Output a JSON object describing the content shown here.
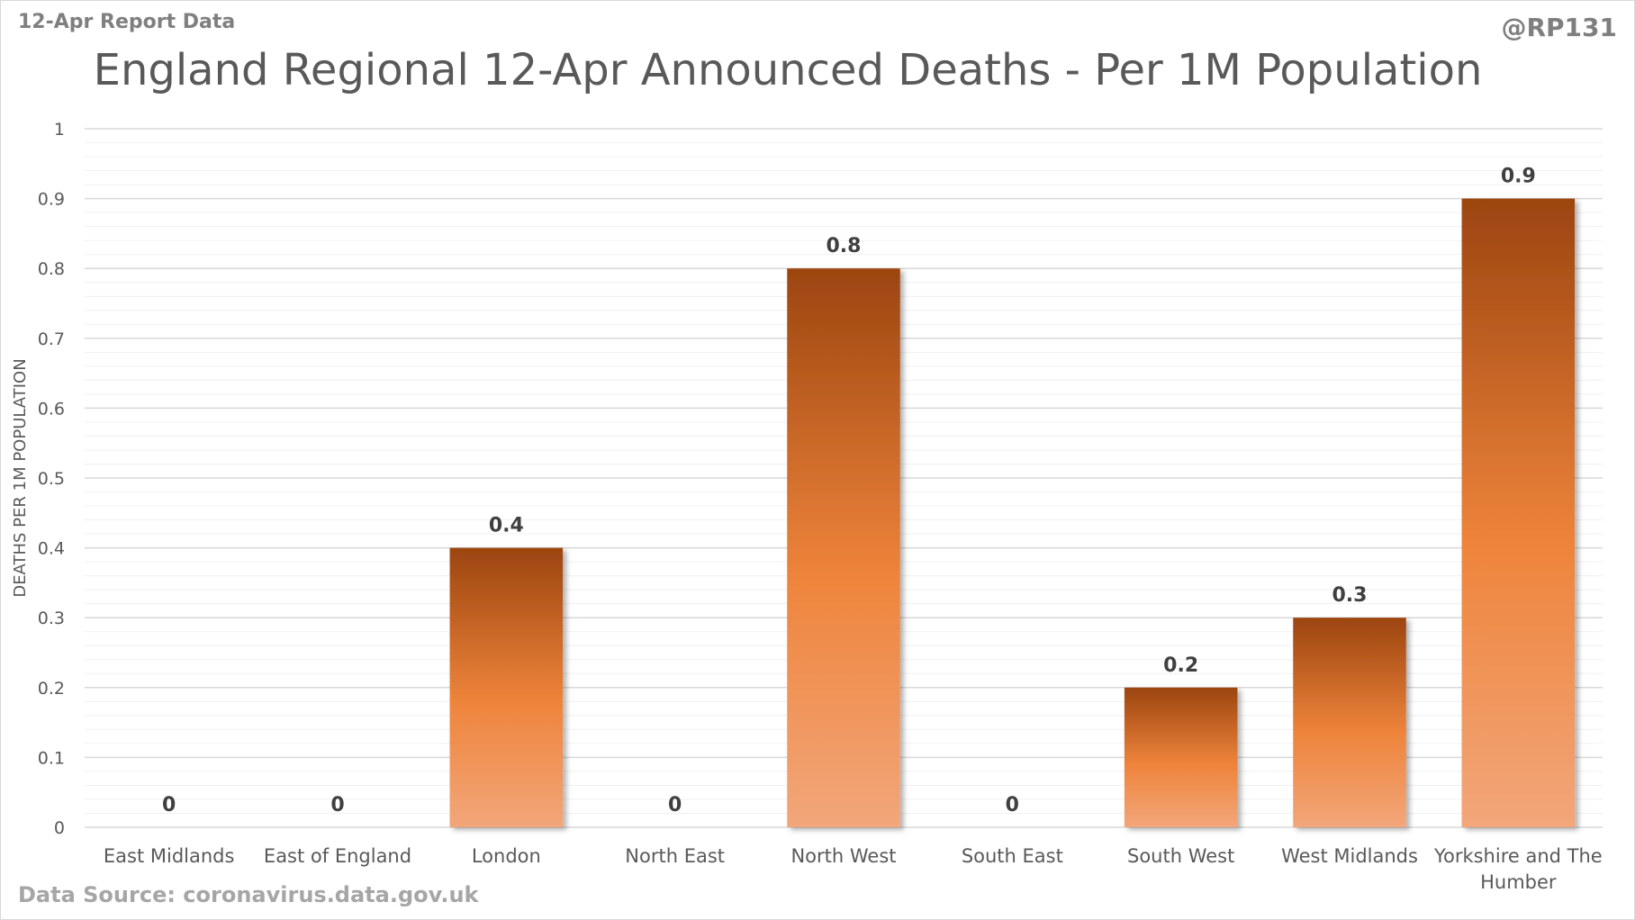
{
  "header": {
    "report_label": "12-Apr Report Data",
    "handle": "@RP131"
  },
  "footer": {
    "source": "Data Source: coronavirus.data.gov.uk"
  },
  "colors": {
    "bar_top": "#9c4510",
    "bar_mid": "#ee843b",
    "bar_bottom": "#f2a67a",
    "major_grid": "#d9d9d9",
    "minor_grid": "#f0f0f0"
  },
  "chart_data": {
    "type": "bar",
    "title": "England Regional 12-Apr Announced Deaths - Per 1M Population",
    "xlabel": "",
    "ylabel": "DEATHS PER 1M POPULATION",
    "ylim": [
      0,
      1
    ],
    "yticks": [
      0,
      0.1,
      0.2,
      0.3,
      0.4,
      0.5,
      0.6,
      0.7,
      0.8,
      0.9,
      1
    ],
    "grid": true,
    "categories": [
      "East Midlands",
      "East of England",
      "London",
      "North East",
      "North West",
      "South East",
      "South West",
      "West Midlands",
      "Yorkshire and The Humber"
    ],
    "values": [
      0,
      0,
      0.4,
      0,
      0.8,
      0,
      0.2,
      0.3,
      0.9
    ]
  }
}
